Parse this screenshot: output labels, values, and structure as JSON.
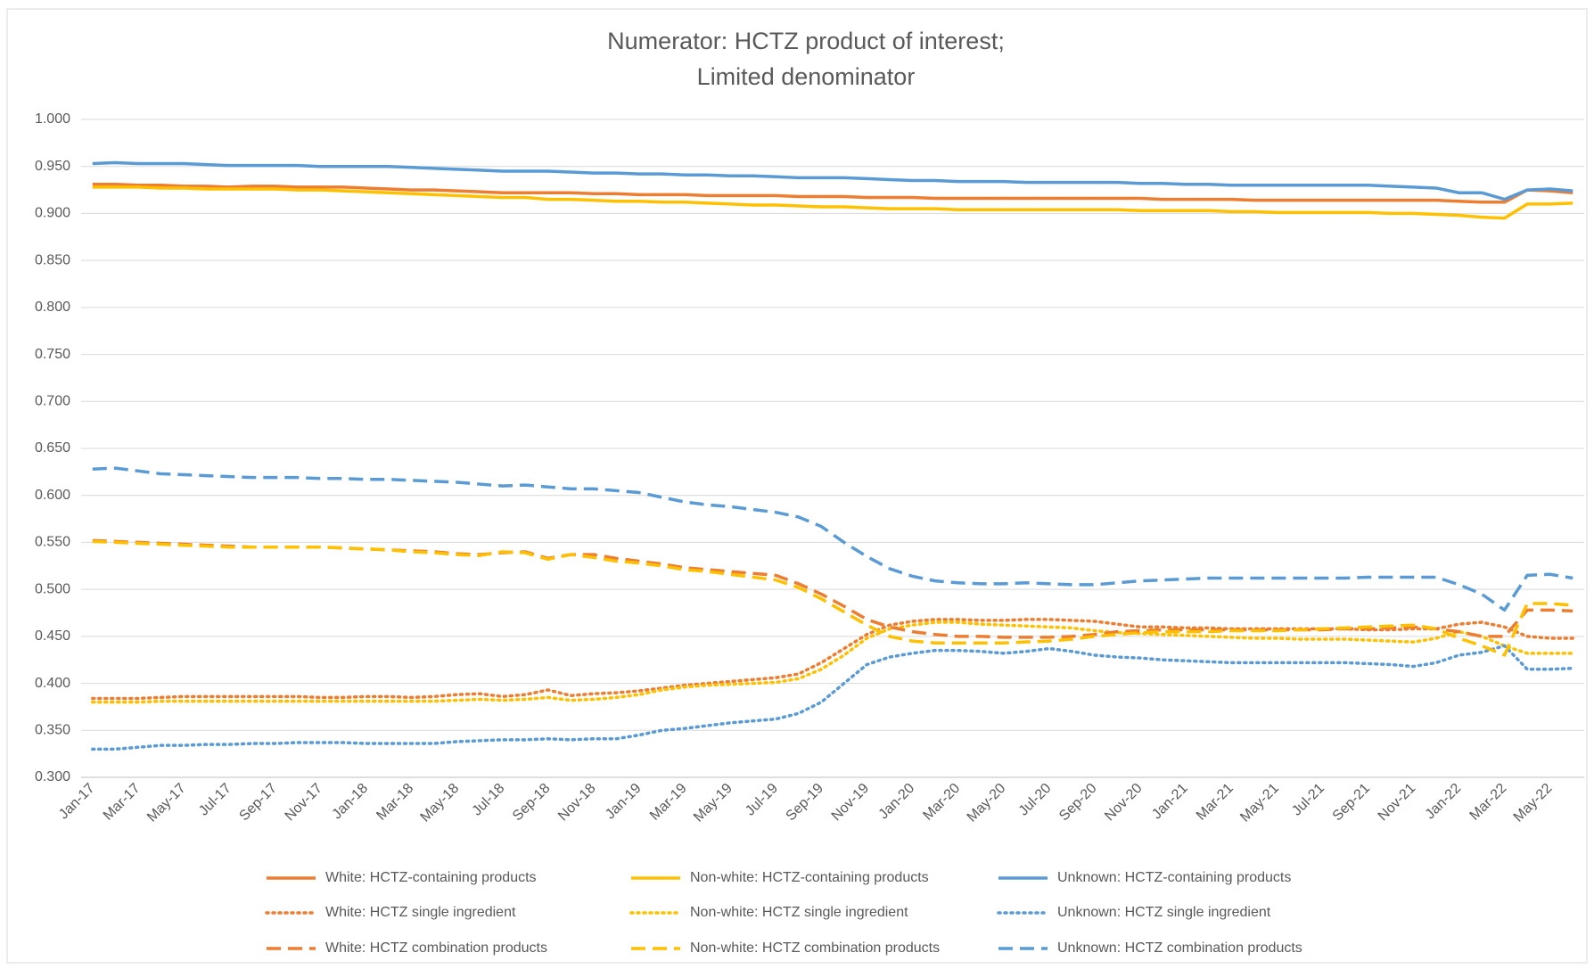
{
  "chart_data": {
    "type": "line",
    "title": [
      "Numerator: HCTZ product of interest;",
      "Limited denominator"
    ],
    "categories": [
      "Jan-17",
      null,
      "Mar-17",
      null,
      "May-17",
      null,
      "Jul-17",
      null,
      "Sep-17",
      null,
      "Nov-17",
      null,
      "Jan-18",
      null,
      "Mar-18",
      null,
      "May-18",
      null,
      "Jul-18",
      null,
      "Sep-18",
      null,
      "Nov-18",
      null,
      "Jan-19",
      null,
      "Mar-19",
      null,
      "May-19",
      null,
      "Jul-19",
      null,
      "Sep-19",
      null,
      "Nov-19",
      null,
      "Jan-20",
      null,
      "Mar-20",
      null,
      "May-20",
      null,
      "Jul-20",
      null,
      "Sep-20",
      null,
      "Nov-20",
      null,
      "Jan-21",
      null,
      "Mar-21",
      null,
      "May-21",
      null,
      "Jul-21",
      null,
      "Sep-21",
      null,
      "Nov-21",
      null,
      "Jan-22",
      null,
      "Mar-22",
      null,
      "May-22",
      null
    ],
    "ylim": [
      0.3,
      1.0
    ],
    "yticks": [
      {
        "value": 0.3,
        "label": "0.300"
      },
      {
        "value": 0.35,
        "label": "0.350"
      },
      {
        "value": 0.4,
        "label": "0.400"
      },
      {
        "value": 0.45,
        "label": "0.450"
      },
      {
        "value": 0.5,
        "label": "0.500"
      },
      {
        "value": 0.55,
        "label": "0.550"
      },
      {
        "value": 0.6,
        "label": "0.600"
      },
      {
        "value": 0.65,
        "label": "0.650"
      },
      {
        "value": 0.7,
        "label": "0.700"
      },
      {
        "value": 0.75,
        "label": "0.750"
      },
      {
        "value": 0.8,
        "label": "0.800"
      },
      {
        "value": 0.85,
        "label": "0.850"
      },
      {
        "value": 0.9,
        "label": "0.900"
      },
      {
        "value": 0.95,
        "label": "0.950"
      },
      {
        "value": 1.0,
        "label": "1.000"
      }
    ],
    "grid": true,
    "legend": "bottom",
    "series": [
      {
        "name": "White: HCTZ-containing products",
        "color": "#ed7d31",
        "style": "solid",
        "values": [
          0.931,
          0.931,
          0.93,
          0.93,
          0.929,
          0.929,
          0.928,
          0.929,
          0.929,
          0.928,
          0.928,
          0.928,
          0.927,
          0.926,
          0.925,
          0.925,
          0.924,
          0.923,
          0.922,
          0.922,
          0.922,
          0.922,
          0.921,
          0.921,
          0.92,
          0.92,
          0.92,
          0.919,
          0.919,
          0.919,
          0.919,
          0.918,
          0.918,
          0.918,
          0.917,
          0.917,
          0.917,
          0.916,
          0.916,
          0.916,
          0.916,
          0.916,
          0.916,
          0.916,
          0.916,
          0.916,
          0.916,
          0.915,
          0.915,
          0.915,
          0.915,
          0.914,
          0.914,
          0.914,
          0.914,
          0.914,
          0.914,
          0.914,
          0.914,
          0.914,
          0.913,
          0.912,
          0.912,
          0.925,
          0.924,
          0.922
        ]
      },
      {
        "name": "Non-white: HCTZ-containing products",
        "color": "#ffc000",
        "style": "solid",
        "values": [
          0.928,
          0.928,
          0.928,
          0.927,
          0.927,
          0.926,
          0.926,
          0.926,
          0.926,
          0.925,
          0.925,
          0.924,
          0.923,
          0.922,
          0.921,
          0.92,
          0.919,
          0.918,
          0.917,
          0.917,
          0.915,
          0.915,
          0.914,
          0.913,
          0.913,
          0.912,
          0.912,
          0.911,
          0.91,
          0.909,
          0.909,
          0.908,
          0.907,
          0.907,
          0.906,
          0.905,
          0.905,
          0.905,
          0.904,
          0.904,
          0.904,
          0.904,
          0.904,
          0.904,
          0.904,
          0.904,
          0.903,
          0.903,
          0.903,
          0.903,
          0.902,
          0.902,
          0.901,
          0.901,
          0.901,
          0.901,
          0.901,
          0.9,
          0.9,
          0.899,
          0.898,
          0.896,
          0.895,
          0.91,
          0.91,
          0.911
        ]
      },
      {
        "name": "Unknown: HCTZ-containing products",
        "color": "#5b9bd5",
        "style": "solid",
        "values": [
          0.953,
          0.954,
          0.953,
          0.953,
          0.953,
          0.952,
          0.951,
          0.951,
          0.951,
          0.951,
          0.95,
          0.95,
          0.95,
          0.95,
          0.949,
          0.948,
          0.947,
          0.946,
          0.945,
          0.945,
          0.945,
          0.944,
          0.943,
          0.943,
          0.942,
          0.942,
          0.941,
          0.941,
          0.94,
          0.94,
          0.939,
          0.938,
          0.938,
          0.938,
          0.937,
          0.936,
          0.935,
          0.935,
          0.934,
          0.934,
          0.934,
          0.933,
          0.933,
          0.933,
          0.933,
          0.933,
          0.932,
          0.932,
          0.931,
          0.931,
          0.93,
          0.93,
          0.93,
          0.93,
          0.93,
          0.93,
          0.93,
          0.929,
          0.928,
          0.927,
          0.922,
          0.922,
          0.915,
          0.925,
          0.926,
          0.924
        ]
      },
      {
        "name": "White: HCTZ single ingredient",
        "color": "#ed7d31",
        "style": "dotted",
        "values": [
          0.384,
          0.384,
          0.384,
          0.385,
          0.386,
          0.386,
          0.386,
          0.386,
          0.386,
          0.386,
          0.385,
          0.385,
          0.386,
          0.386,
          0.385,
          0.386,
          0.388,
          0.389,
          0.386,
          0.388,
          0.393,
          0.387,
          0.389,
          0.39,
          0.392,
          0.395,
          0.398,
          0.4,
          0.402,
          0.404,
          0.406,
          0.41,
          0.422,
          0.437,
          0.452,
          0.462,
          0.466,
          0.468,
          0.468,
          0.467,
          0.467,
          0.468,
          0.468,
          0.467,
          0.466,
          0.463,
          0.46,
          0.46,
          0.459,
          0.459,
          0.458,
          0.458,
          0.458,
          0.458,
          0.458,
          0.458,
          0.457,
          0.457,
          0.458,
          0.458,
          0.463,
          0.465,
          0.46,
          0.45,
          0.448,
          0.448
        ]
      },
      {
        "name": "Non-white: HCTZ single ingredient",
        "color": "#ffc000",
        "style": "dotted",
        "values": [
          0.38,
          0.38,
          0.38,
          0.381,
          0.381,
          0.381,
          0.381,
          0.381,
          0.381,
          0.381,
          0.381,
          0.381,
          0.381,
          0.381,
          0.381,
          0.381,
          0.382,
          0.383,
          0.382,
          0.383,
          0.385,
          0.382,
          0.383,
          0.385,
          0.388,
          0.393,
          0.396,
          0.398,
          0.399,
          0.4,
          0.401,
          0.405,
          0.415,
          0.43,
          0.448,
          0.458,
          0.462,
          0.465,
          0.465,
          0.463,
          0.462,
          0.461,
          0.46,
          0.459,
          0.456,
          0.454,
          0.453,
          0.452,
          0.451,
          0.45,
          0.449,
          0.448,
          0.448,
          0.447,
          0.447,
          0.447,
          0.446,
          0.445,
          0.444,
          0.448,
          0.455,
          0.45,
          0.44,
          0.432,
          0.432,
          0.432
        ]
      },
      {
        "name": "Unknown: HCTZ single ingredient",
        "color": "#5b9bd5",
        "style": "dotted",
        "values": [
          0.33,
          0.33,
          0.332,
          0.334,
          0.334,
          0.335,
          0.335,
          0.336,
          0.336,
          0.337,
          0.337,
          0.337,
          0.336,
          0.336,
          0.336,
          0.336,
          0.338,
          0.339,
          0.34,
          0.34,
          0.341,
          0.34,
          0.341,
          0.341,
          0.345,
          0.35,
          0.352,
          0.355,
          0.358,
          0.36,
          0.362,
          0.368,
          0.38,
          0.4,
          0.42,
          0.428,
          0.432,
          0.435,
          0.435,
          0.434,
          0.432,
          0.434,
          0.437,
          0.434,
          0.43,
          0.428,
          0.427,
          0.425,
          0.424,
          0.423,
          0.422,
          0.422,
          0.422,
          0.422,
          0.422,
          0.422,
          0.421,
          0.42,
          0.418,
          0.422,
          0.43,
          0.433,
          0.44,
          0.415,
          0.415,
          0.416
        ]
      },
      {
        "name": "White: HCTZ combination products",
        "color": "#ed7d31",
        "style": "dashed",
        "values": [
          0.552,
          0.551,
          0.55,
          0.549,
          0.548,
          0.547,
          0.546,
          0.545,
          0.545,
          0.545,
          0.545,
          0.544,
          0.543,
          0.542,
          0.541,
          0.54,
          0.538,
          0.537,
          0.539,
          0.54,
          0.533,
          0.537,
          0.537,
          0.533,
          0.53,
          0.527,
          0.523,
          0.521,
          0.519,
          0.517,
          0.515,
          0.506,
          0.495,
          0.482,
          0.468,
          0.46,
          0.455,
          0.452,
          0.45,
          0.45,
          0.449,
          0.449,
          0.449,
          0.45,
          0.452,
          0.455,
          0.456,
          0.457,
          0.457,
          0.457,
          0.457,
          0.457,
          0.457,
          0.457,
          0.457,
          0.458,
          0.458,
          0.459,
          0.46,
          0.458,
          0.455,
          0.45,
          0.45,
          0.478,
          0.478,
          0.477
        ]
      },
      {
        "name": "Non-white: HCTZ combination products",
        "color": "#ffc000",
        "style": "dashed",
        "values": [
          0.551,
          0.55,
          0.549,
          0.548,
          0.547,
          0.546,
          0.545,
          0.545,
          0.545,
          0.545,
          0.545,
          0.544,
          0.543,
          0.542,
          0.54,
          0.539,
          0.537,
          0.536,
          0.54,
          0.539,
          0.532,
          0.537,
          0.534,
          0.53,
          0.528,
          0.525,
          0.521,
          0.519,
          0.516,
          0.513,
          0.51,
          0.502,
          0.49,
          0.476,
          0.462,
          0.45,
          0.445,
          0.443,
          0.443,
          0.443,
          0.443,
          0.444,
          0.445,
          0.447,
          0.45,
          0.452,
          0.454,
          0.455,
          0.455,
          0.455,
          0.456,
          0.456,
          0.456,
          0.457,
          0.458,
          0.459,
          0.46,
          0.461,
          0.462,
          0.458,
          0.448,
          0.44,
          0.43,
          0.485,
          0.485,
          0.483
        ]
      },
      {
        "name": "Unknown: HCTZ combination products",
        "color": "#5b9bd5",
        "style": "dashed",
        "values": [
          0.628,
          0.629,
          0.626,
          0.623,
          0.622,
          0.621,
          0.62,
          0.619,
          0.619,
          0.619,
          0.618,
          0.618,
          0.617,
          0.617,
          0.616,
          0.615,
          0.614,
          0.612,
          0.61,
          0.611,
          0.609,
          0.607,
          0.607,
          0.605,
          0.603,
          0.598,
          0.593,
          0.59,
          0.588,
          0.585,
          0.582,
          0.577,
          0.567,
          0.55,
          0.535,
          0.522,
          0.514,
          0.509,
          0.507,
          0.506,
          0.506,
          0.507,
          0.506,
          0.505,
          0.505,
          0.507,
          0.509,
          0.51,
          0.511,
          0.512,
          0.512,
          0.512,
          0.512,
          0.512,
          0.512,
          0.512,
          0.513,
          0.513,
          0.513,
          0.513,
          0.505,
          0.495,
          0.478,
          0.515,
          0.516,
          0.512
        ]
      }
    ]
  }
}
